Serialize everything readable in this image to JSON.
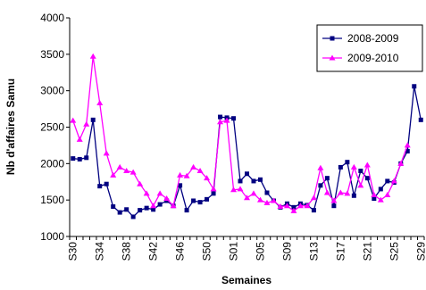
{
  "chart_data": {
    "type": "line",
    "ylabel": "Nb d'affaires Samu",
    "xlabel": "Semaines",
    "categories": [
      "S30",
      null,
      null,
      null,
      "S34",
      null,
      null,
      null,
      "S38",
      null,
      null,
      null,
      "S42",
      null,
      null,
      null,
      "S46",
      null,
      null,
      null,
      "S50",
      null,
      null,
      null,
      "S01",
      null,
      null,
      null,
      "S05",
      null,
      null,
      null,
      "S09",
      null,
      null,
      null,
      "S13",
      null,
      null,
      null,
      "S17",
      null,
      null,
      null,
      "S21",
      null,
      null,
      null,
      "S25",
      null,
      null,
      null,
      "S29"
    ],
    "series": [
      {
        "name": "2008-2009",
        "color": "#000080",
        "marker": "square",
        "values": [
          2070,
          2060,
          2080,
          2600,
          1690,
          1720,
          1410,
          1330,
          1370,
          1270,
          1360,
          1390,
          1370,
          1440,
          1490,
          1420,
          1700,
          1360,
          1490,
          1470,
          1510,
          1590,
          2640,
          2630,
          2620,
          1760,
          1860,
          1760,
          1780,
          1600,
          1490,
          1400,
          1450,
          1400,
          1450,
          1430,
          1360,
          1700,
          1800,
          1420,
          1950,
          2020,
          1560,
          1900,
          1800,
          1520,
          1650,
          1760,
          1740,
          2000,
          2170,
          3060,
          2600
        ]
      },
      {
        "name": "2009-2010",
        "color": "#ff00ff",
        "marker": "triangle",
        "values": [
          2590,
          2330,
          2540,
          3470,
          2830,
          2140,
          1840,
          1950,
          1900,
          1880,
          1720,
          1590,
          1420,
          1590,
          1520,
          1420,
          1840,
          1830,
          1950,
          1900,
          1800,
          1650,
          2570,
          2590,
          1640,
          1650,
          1530,
          1590,
          1500,
          1460,
          1490,
          1410,
          1420,
          1350,
          1420,
          1420,
          1530,
          1940,
          1600,
          1490,
          1600,
          1590,
          1950,
          1700,
          1980,
          1570,
          1500,
          1570,
          1760,
          2000,
          2250,
          null,
          null
        ]
      }
    ],
    "ylim": [
      1000,
      4000
    ],
    "yticks": [
      1000,
      1500,
      2000,
      2500,
      3000,
      3500,
      4000
    ],
    "legend": "top-right"
  }
}
